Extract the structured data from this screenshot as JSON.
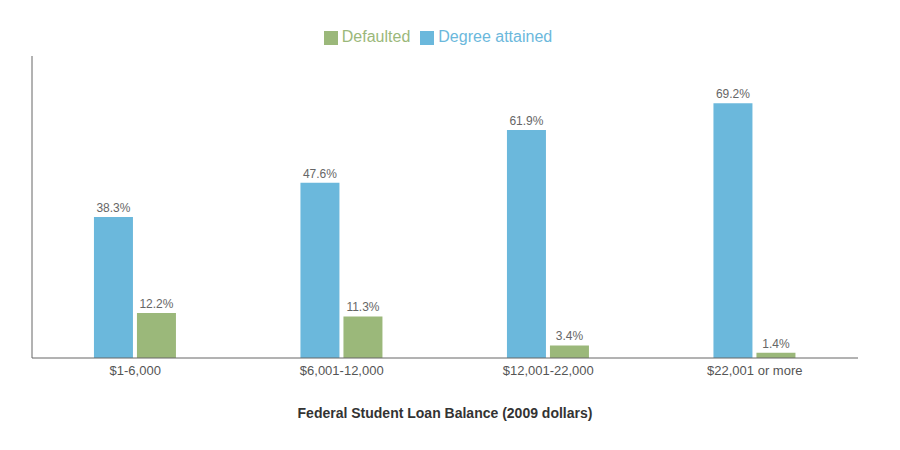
{
  "chart_data": {
    "type": "bar",
    "xlabel": "Federal Student Loan Balance (2009 dollars)",
    "categories": [
      "$1-6,000",
      "$6,001-12,000",
      "$12,001-22,000",
      "$22,001 or more"
    ],
    "series": [
      {
        "name": "Degree attained",
        "color": "#6BB8DC",
        "values": [
          38.3,
          47.6,
          61.9,
          69.2
        ],
        "value_labels": [
          "38.3%",
          "47.6%",
          "61.9%",
          "69.2%"
        ]
      },
      {
        "name": "Defaulted",
        "color": "#9BB87A",
        "values": [
          12.2,
          11.3,
          3.4,
          1.4
        ],
        "value_labels": [
          "12.2%",
          "11.3%",
          "3.4%",
          "1.4%"
        ]
      }
    ],
    "ylim": [
      0,
      82
    ],
    "grid": false,
    "legend": "upper center",
    "data_labels": true,
    "tick_labels": "x"
  }
}
